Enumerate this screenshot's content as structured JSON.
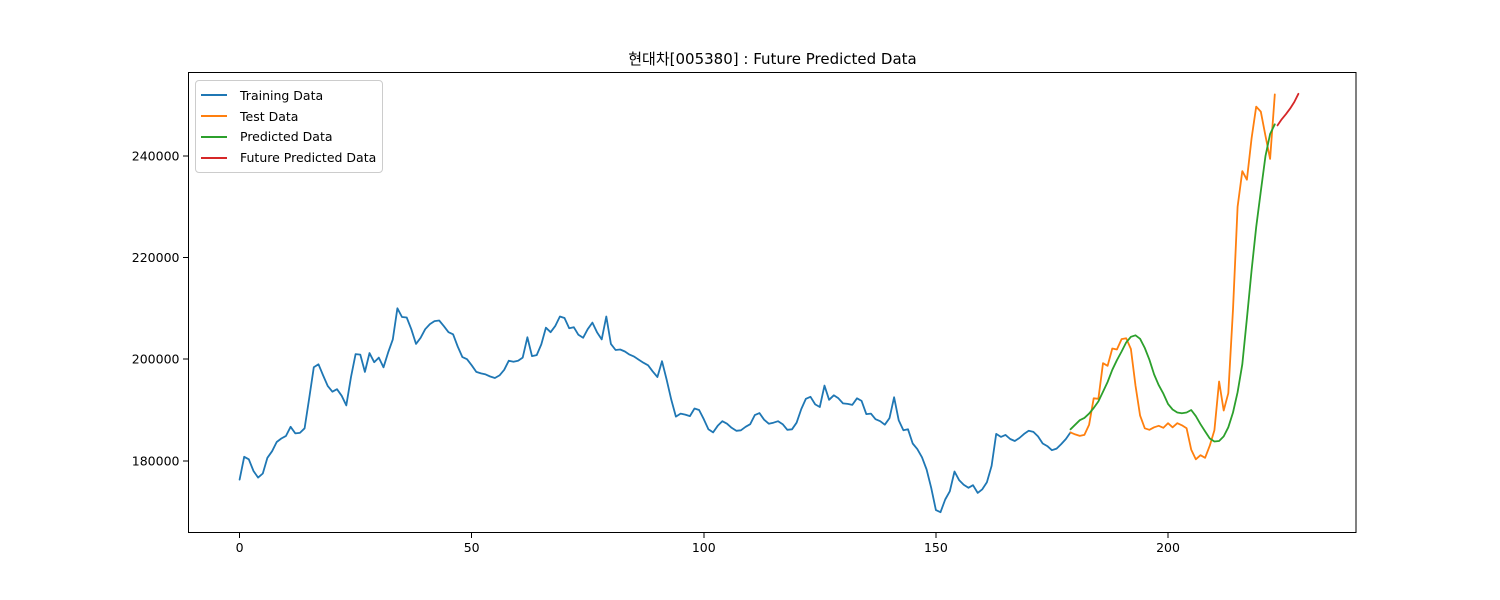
{
  "title": "현대차[005380] : Future Predicted Data",
  "chart_data": {
    "type": "line",
    "title": "현대차[005380] : Future Predicted Data",
    "xlabel": "",
    "ylabel": "",
    "xlim": [
      -11,
      240.5
    ],
    "ylim": [
      165900,
      256400
    ],
    "x_ticks": [
      0,
      50,
      100,
      150,
      200
    ],
    "y_ticks": [
      180000,
      200000,
      220000,
      240000
    ],
    "grid": false,
    "legend_position": "upper left",
    "background": "#ffffff",
    "axis_color": "#000000",
    "series": [
      {
        "name": "Training Data",
        "color": "#1f77b4",
        "x0": 0,
        "dx": 1,
        "values": [
          176300,
          180800,
          180300,
          178000,
          176700,
          177500,
          180600,
          181900,
          183700,
          184400,
          184900,
          186700,
          185400,
          185500,
          186400,
          192300,
          198400,
          199000,
          196800,
          194700,
          193600,
          194100,
          192800,
          190900,
          196500,
          201000,
          200900,
          197500,
          201200,
          199400,
          200300,
          198400,
          201300,
          203900,
          210000,
          208300,
          208200,
          205900,
          203000,
          204200,
          205900,
          206900,
          207500,
          207600,
          206500,
          205300,
          204900,
          202500,
          200400,
          200000,
          198800,
          197500,
          197200,
          197000,
          196600,
          196300,
          196800,
          197900,
          199700,
          199500,
          199700,
          200300,
          204300,
          200600,
          200800,
          202900,
          206200,
          205300,
          206500,
          208400,
          208100,
          206100,
          206300,
          204800,
          204200,
          205900,
          207200,
          205300,
          203900,
          208400,
          203000,
          201800,
          201900,
          201500,
          200900,
          200500,
          199900,
          199300,
          198800,
          197600,
          196500,
          199600,
          196000,
          192000,
          188700,
          189300,
          189100,
          188800,
          190300,
          190000,
          188200,
          186200,
          185600,
          186900,
          187800,
          187300,
          186500,
          185900,
          186000,
          186700,
          187200,
          189000,
          189400,
          188100,
          187300,
          187500,
          187800,
          187200,
          186100,
          186200,
          187500,
          190200,
          192200,
          192600,
          191100,
          190600,
          194800,
          192000,
          192900,
          192300,
          191300,
          191200,
          191000,
          192300,
          191800,
          189200,
          189300,
          188200,
          187800,
          187100,
          188400,
          192500,
          188000,
          186000,
          186200,
          183400,
          182300,
          180700,
          178300,
          174700,
          170300,
          169900,
          172400,
          174000,
          177900,
          176200,
          175300,
          174700,
          175200,
          173700,
          174400,
          175800,
          179000,
          185300,
          184700,
          185100,
          184300,
          183900,
          184500,
          185300,
          185900,
          185700,
          184800,
          183400,
          182900,
          182100,
          182400,
          183300,
          184300,
          185600
        ]
      },
      {
        "name": "Test Data",
        "color": "#ff7f0e",
        "x0": 179,
        "dx": 1,
        "values": [
          185600,
          185200,
          184900,
          185100,
          187100,
          192300,
          192200,
          199200,
          198700,
          202100,
          201900,
          203950,
          204100,
          202000,
          194800,
          188900,
          186400,
          186100,
          186600,
          186900,
          186500,
          187400,
          186600,
          187400,
          187000,
          186400,
          182200,
          180300,
          181100,
          180600,
          183000,
          186000,
          195600,
          189900,
          193300,
          209800,
          230000,
          237000,
          235300,
          243500,
          249700,
          248700,
          243900,
          239400,
          252100
        ]
      },
      {
        "name": "Predicted Data",
        "color": "#2ca02c",
        "x0": 179,
        "dx": 1,
        "values": [
          186200,
          187100,
          188000,
          188450,
          189300,
          190400,
          191700,
          193600,
          195500,
          197900,
          199800,
          201500,
          203300,
          204400,
          204700,
          204000,
          202200,
          199900,
          197000,
          194900,
          193200,
          191200,
          190100,
          189500,
          189350,
          189500,
          190000,
          188800,
          187200,
          185800,
          184400,
          183800,
          183900,
          184800,
          186600,
          189500,
          193500,
          199000,
          208000,
          217500,
          226000,
          233000,
          240000,
          244300,
          246200
        ]
      },
      {
        "name": "Future Predicted Data",
        "color": "#d62728",
        "x0": 223.6,
        "dx": 0.9,
        "values": [
          246000,
          247200,
          248200,
          249300,
          250600,
          252200
        ]
      }
    ]
  }
}
